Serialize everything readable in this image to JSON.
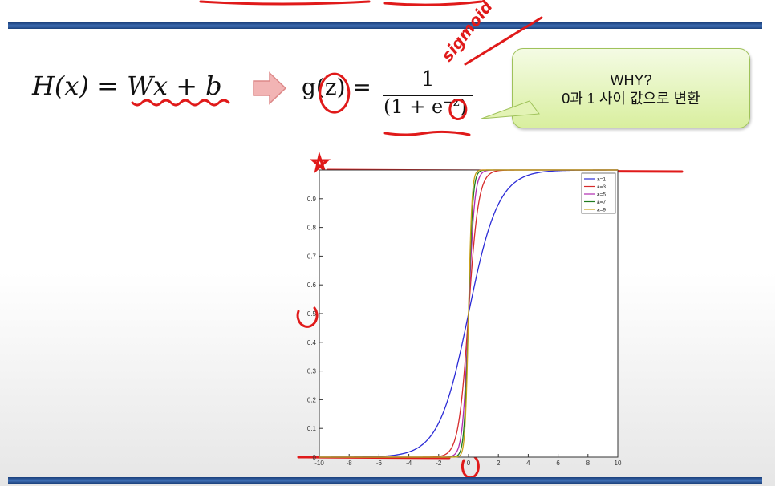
{
  "slide": {
    "hypothesis": "H(x) = Wx + b",
    "sigmoid_lhs": "g(z) =",
    "sigmoid_numerator": "1",
    "sigmoid_denominator": "(1 + e",
    "sigmoid_exponent": "−z",
    "sigmoid_close": ")",
    "bubble_line1": "WHY?",
    "bubble_line2": "0과 1 사이 값으로 변환",
    "annotation_handwritten": "sigmoid",
    "arrow_color": "#f2b4b4",
    "bubble_color": "#d9ef9f",
    "bar_color": "#2a5596"
  },
  "chart_data": {
    "type": "line",
    "title": "",
    "xlabel": "",
    "ylabel": "",
    "xlim": [
      -10,
      10
    ],
    "ylim": [
      0,
      1
    ],
    "xticks": [
      -10,
      -8,
      -6,
      -4,
      -2,
      0,
      2,
      4,
      6,
      8,
      10
    ],
    "yticks": [
      0,
      0.1,
      0.2,
      0.3,
      0.4,
      0.5,
      0.6,
      0.7,
      0.8,
      0.9,
      1
    ],
    "xtick_labels": [
      "-10",
      "-8",
      "-6",
      "-4",
      "-2",
      "0",
      "2",
      "4",
      "6",
      "8",
      "10"
    ],
    "ytick_labels": [
      "0",
      "0.1",
      "0.2",
      "0.3",
      "0.4",
      "0.5",
      "0.6",
      "0.7",
      "0.8",
      "0.9",
      ""
    ],
    "grid": false,
    "legend": "top-right",
    "series": [
      {
        "name": "a=1",
        "a": 1,
        "color": "#2b2bd6"
      },
      {
        "name": "a=3",
        "a": 3,
        "color": "#d62b2b"
      },
      {
        "name": "a=5",
        "a": 5,
        "color": "#b02bb0"
      },
      {
        "name": "a=7",
        "a": 7,
        "color": "#1f7a1f"
      },
      {
        "name": "a=9",
        "a": 9,
        "color": "#c9a21a"
      }
    ]
  }
}
